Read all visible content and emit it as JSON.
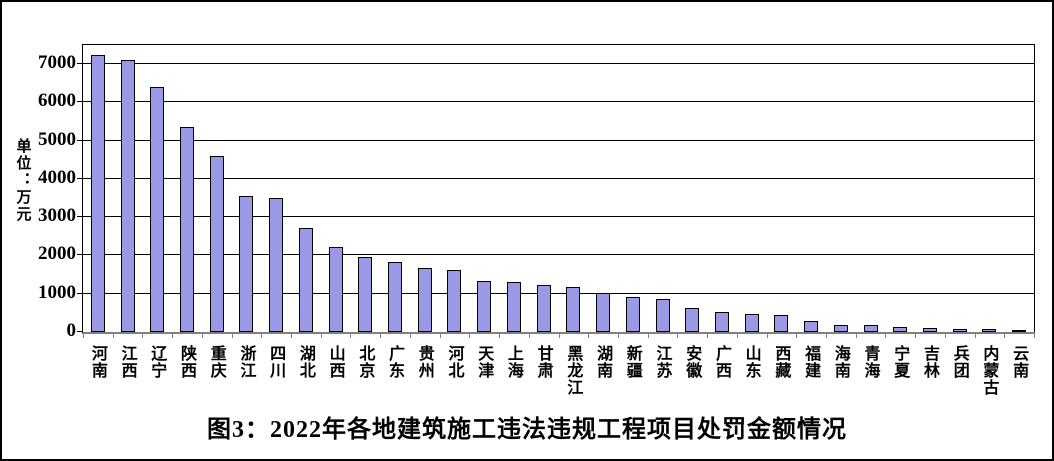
{
  "chart_data": {
    "type": "bar",
    "title": "图3：2022年各地建筑施工违法违规工程项目处罚金额情况",
    "unit_label": "单位：万元",
    "categories": [
      "河南",
      "江西",
      "辽宁",
      "陕西",
      "重庆",
      "浙江",
      "四川",
      "湖北",
      "山西",
      "北京",
      "广东",
      "贵州",
      "河北",
      "天津",
      "上海",
      "甘肃",
      "黑龙江",
      "湖南",
      "新疆",
      "江苏",
      "安徽",
      "广西",
      "山东",
      "西藏",
      "福建",
      "海南",
      "青海",
      "宁夏",
      "吉林",
      "兵团",
      "内蒙古",
      "云南"
    ],
    "values": [
      7250,
      7100,
      6400,
      5370,
      4600,
      3550,
      3500,
      2730,
      2230,
      1950,
      1840,
      1680,
      1630,
      1330,
      1310,
      1240,
      1180,
      1030,
      920,
      870,
      620,
      510,
      470,
      450,
      300,
      190,
      180,
      120,
      110,
      80,
      70,
      40
    ],
    "xlabel": "",
    "ylabel": "单位：万元",
    "ylim": [
      0,
      7500
    ],
    "yticks": [
      0,
      1000,
      2000,
      3000,
      4000,
      5000,
      6000,
      7000
    ],
    "grid": true,
    "legend": "none",
    "bar_color": "#9999E6",
    "bar_border_color": "#000000",
    "gridline_color": "#000000",
    "baseline_color": "#808080"
  }
}
